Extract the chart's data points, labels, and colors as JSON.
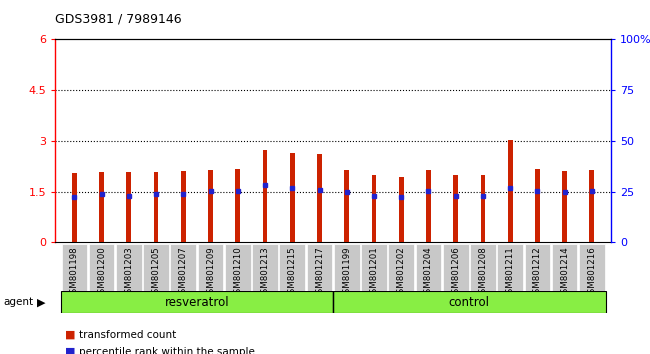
{
  "title": "GDS3981 / 7989146",
  "samples": [
    "GSM801198",
    "GSM801200",
    "GSM801203",
    "GSM801205",
    "GSM801207",
    "GSM801209",
    "GSM801210",
    "GSM801213",
    "GSM801215",
    "GSM801217",
    "GSM801199",
    "GSM801201",
    "GSM801202",
    "GSM801204",
    "GSM801206",
    "GSM801208",
    "GSM801211",
    "GSM801212",
    "GSM801214",
    "GSM801216"
  ],
  "bar_heights": [
    2.05,
    2.07,
    2.07,
    2.07,
    2.1,
    2.13,
    2.18,
    2.72,
    2.65,
    2.6,
    2.15,
    1.98,
    1.93,
    2.13,
    1.98,
    1.98,
    3.02,
    2.18,
    2.1,
    2.15
  ],
  "blue_dot_y": [
    1.35,
    1.42,
    1.38,
    1.42,
    1.42,
    1.52,
    1.52,
    1.68,
    1.62,
    1.55,
    1.5,
    1.36,
    1.33,
    1.52,
    1.38,
    1.38,
    1.6,
    1.52,
    1.48,
    1.53
  ],
  "resveratrol_count": 10,
  "control_count": 10,
  "ylim_left": [
    0,
    6
  ],
  "ylim_right": [
    0,
    100
  ],
  "yticks_left": [
    0,
    1.5,
    3.0,
    4.5,
    6.0
  ],
  "yticks_right": [
    0,
    25,
    50,
    75,
    100
  ],
  "ytick_labels_left": [
    "0",
    "1.5",
    "3",
    "4.5",
    "6"
  ],
  "ytick_labels_right": [
    "0",
    "25",
    "50",
    "75",
    "100%"
  ],
  "hlines": [
    1.5,
    3.0,
    4.5
  ],
  "bar_color": "#cc2200",
  "dot_color": "#2222cc",
  "resveratrol_label": "resveratrol",
  "control_label": "control",
  "agent_label": "agent",
  "legend_items": [
    "transformed count",
    "percentile rank within the sample"
  ],
  "bar_width": 0.18,
  "agent_bar_color": "#88ee44",
  "sample_bg_color": "#c8c8c8"
}
